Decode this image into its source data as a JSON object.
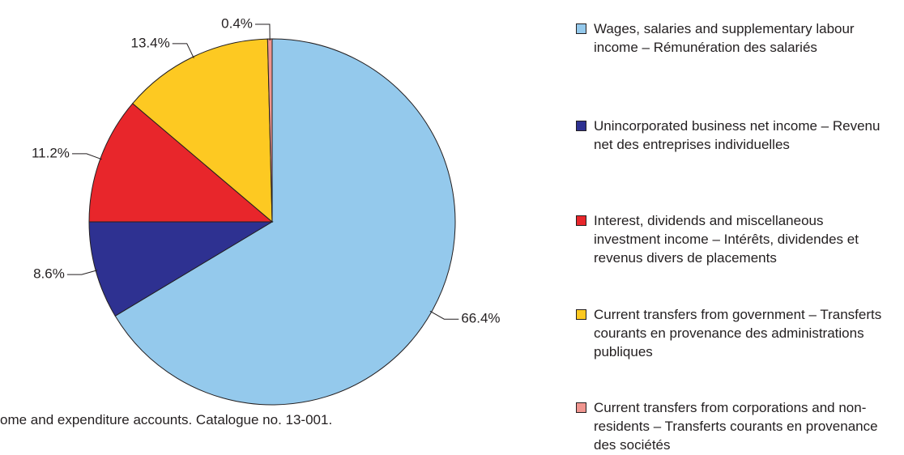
{
  "chart_data": {
    "type": "pie",
    "categories": [
      "Wages, salaries and supplementary labour income – Rémunération des salariés",
      "Unincorporated business net income – Revenu net des entreprises individuelles",
      "Interest, dividends and miscellaneous investment income – Intérêts, dividendes et revenus divers de placements",
      "Current transfers from government – Transferts courants en provenance des administrations publiques",
      "Current transfers from corporations and non-residents – Transferts courants en provenance des sociétés"
    ],
    "values": [
      66.4,
      8.6,
      11.2,
      13.4,
      0.4
    ],
    "value_labels": [
      "66.4%",
      "8.6%",
      "11.2%",
      "13.4%",
      "0.4%"
    ],
    "colors": [
      "#94c9ec",
      "#2e3191",
      "#e8262b",
      "#fdc922",
      "#f0958f"
    ],
    "legend": "right",
    "note": "ome and  expenditure accounts. Catalogue no. 13-001."
  }
}
